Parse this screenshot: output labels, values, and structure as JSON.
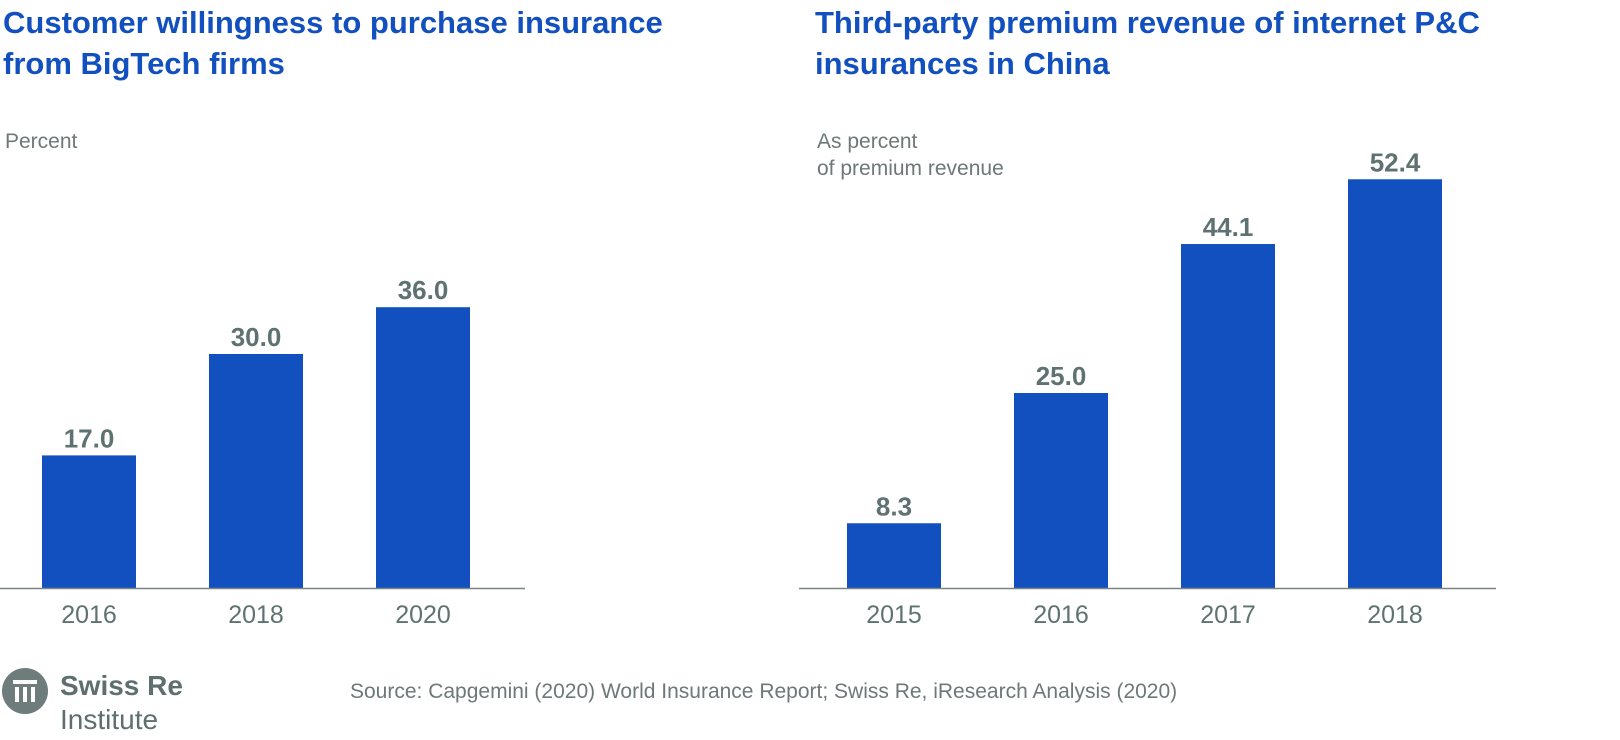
{
  "logo": {
    "name": "Swiss Re",
    "sub": "Institute",
    "icon": "swiss-re-pillar-icon"
  },
  "source": "Source: Capgemini (2020) World Insurance Report; Swiss Re, iResearch Analysis (2020)",
  "colors": {
    "bar": "#1150be",
    "title": "#1150be",
    "label": "#5f7272",
    "axis": "#7a8585",
    "unit_text": "#6e7878"
  },
  "chart_data": [
    {
      "type": "bar",
      "title": "Customer willingness to purchase insurance from BigTech firms",
      "ylabel": "Percent",
      "categories": [
        "2016",
        "2018",
        "2020"
      ],
      "values": [
        17.0,
        30.0,
        36.0
      ],
      "data_labels": [
        "17.0",
        "30.0",
        "36.0"
      ],
      "ylim": [
        0,
        55
      ],
      "grid": false
    },
    {
      "type": "bar",
      "title": "Third-party premium revenue of internet P&C insurances in China",
      "ylabel": "As percent\nof premium revenue",
      "categories": [
        "2015",
        "2016",
        "2017",
        "2018"
      ],
      "values": [
        8.3,
        25.0,
        44.1,
        52.4
      ],
      "data_labels": [
        "8.3",
        "25.0",
        "44.1",
        "52.4"
      ],
      "ylim": [
        0,
        55
      ],
      "grid": false
    }
  ]
}
